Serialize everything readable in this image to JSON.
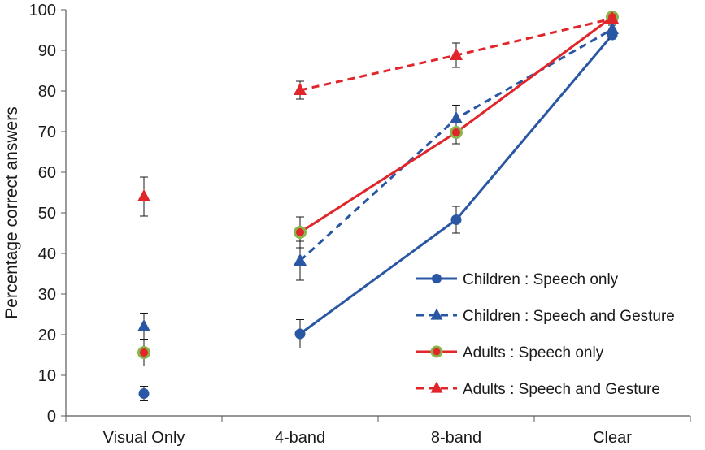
{
  "chart_data": {
    "type": "line",
    "title": "",
    "xlabel": "",
    "ylabel": "Percentage correct answers",
    "ylim": [
      0,
      100
    ],
    "yticks": [
      0,
      10,
      20,
      30,
      40,
      50,
      60,
      70,
      80,
      90,
      100
    ],
    "ytick_labels": [
      "0",
      "10",
      "20",
      "30",
      "40",
      "50",
      "60",
      "70",
      "80",
      "90",
      "100"
    ],
    "categories": [
      "Visual Only",
      "4-band",
      "8-band",
      "Clear"
    ],
    "grid": false,
    "legend_position": "bottom-right",
    "series": [
      {
        "name": "Children : Speech only",
        "values": [
          5.5,
          20.2,
          48.3,
          93.8
        ],
        "errors": [
          1.8,
          3.5,
          3.3,
          1.0
        ],
        "color": "#2957a4",
        "dash": "solid",
        "marker": "circle",
        "marker_color": "#2957a4",
        "marker_edge": "#2957a4",
        "connect_from": 1
      },
      {
        "name": "Children : Speech and Gesture",
        "values": [
          22.0,
          38.2,
          73.2,
          95.2
        ],
        "errors": [
          3.3,
          4.8,
          3.3,
          1.0
        ],
        "color": "#2957a4",
        "dash": "dashed",
        "marker": "triangle",
        "marker_color": "#2957a4",
        "marker_edge": "#2957a4",
        "connect_from": 1
      },
      {
        "name": "Adults : Speech only",
        "values": [
          15.6,
          45.2,
          69.8,
          98.2
        ],
        "errors": [
          3.3,
          3.8,
          2.8,
          0.6
        ],
        "color": "#e0262a",
        "dash": "solid",
        "marker": "circle",
        "marker_color": "#e0262a",
        "marker_edge": "#8ab54b",
        "connect_from": 1
      },
      {
        "name": "Adults : Speech and Gesture",
        "values": [
          54.0,
          80.2,
          88.8,
          97.8
        ],
        "errors": [
          4.8,
          2.2,
          3.0,
          0.6
        ],
        "color": "#e0262a",
        "dash": "dashed",
        "marker": "triangle",
        "marker_color": "#e0262a",
        "marker_edge": "#e0262a",
        "connect_from": 1
      }
    ]
  }
}
